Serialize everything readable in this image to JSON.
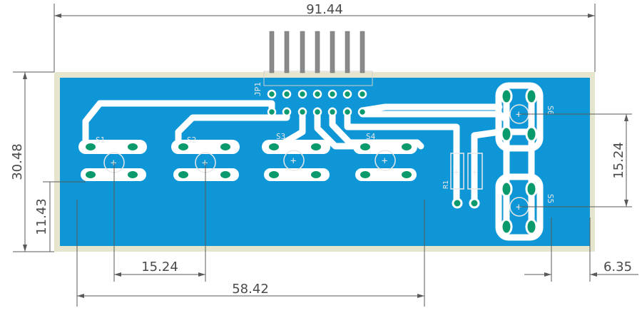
{
  "colors": {
    "board_outline": "#e6e6cf",
    "copper_pour": "#0f96d6",
    "trace": "#ffffff",
    "pad_ring": "#ffffff",
    "pad_fill": "#0b9a6e",
    "silkscreen": "#e8e8e8",
    "dimension_line": "#5a5a5a",
    "pin_metal": "#8a8a8a"
  },
  "dimensions": {
    "overall_width": "91.44",
    "overall_height": "30.48",
    "left_offset": "11.43",
    "right_offset_vertical": "15.24",
    "switch_pitch": "15.24",
    "bottom_span": "58.42",
    "right_edge_offset": "6.35"
  },
  "components": {
    "header": "JP1",
    "switches": [
      "S1",
      "S2",
      "S3",
      "S4",
      "S5",
      "S6"
    ],
    "resistor": "R1"
  }
}
